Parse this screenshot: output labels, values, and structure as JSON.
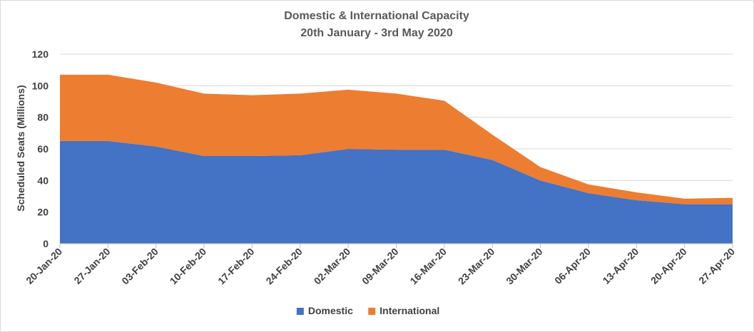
{
  "chart_data": {
    "type": "area",
    "stacked": true,
    "title": "Domestic & International Capacity",
    "subtitle": "20th January - 3rd May 2020",
    "ylabel": "Scheduled Seats (Millions)",
    "xlabel": "",
    "ylim": [
      0,
      120
    ],
    "yticks": [
      0,
      20,
      40,
      60,
      80,
      100,
      120
    ],
    "grid": true,
    "legend_position": "bottom",
    "categories": [
      "20-Jan-20",
      "27-Jan-20",
      "03-Feb-20",
      "10-Feb-20",
      "17-Feb-20",
      "24-Feb-20",
      "02-Mar-20",
      "09-Mar-20",
      "16-Mar-20",
      "23-Mar-20",
      "30-Mar-20",
      "06-Apr-20",
      "13-Apr-20",
      "20-Apr-20",
      "27-Apr-20"
    ],
    "series": [
      {
        "name": "Domestic",
        "color": "#4472c4",
        "values": [
          65,
          65,
          61.5,
          55.5,
          55.5,
          56,
          60,
          59.5,
          59.5,
          53,
          40,
          32,
          27.5,
          25,
          25
        ]
      },
      {
        "name": "International",
        "color": "#ed7d31",
        "values": [
          42,
          42,
          40.5,
          39.5,
          38.5,
          39,
          37.5,
          35.5,
          31,
          16,
          8.5,
          5.5,
          5,
          3.5,
          4
        ]
      }
    ]
  }
}
